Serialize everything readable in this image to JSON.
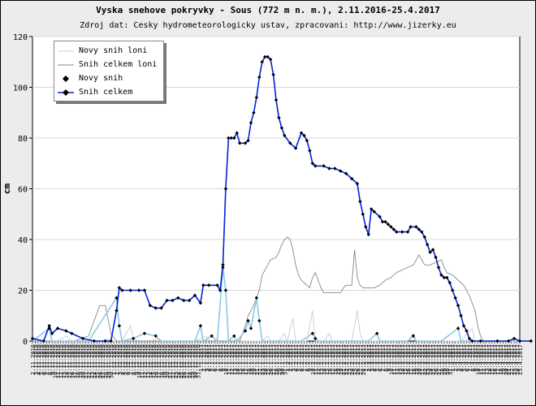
{
  "chart_data": {
    "type": "line",
    "title": "Vyska snehove pokryvky - Sous (772 m n. m.), 2.11.2016-25.4.2017",
    "subtitle": "Zdroj dat: Cesky hydrometeorologicky ustav, zpracovani: http://www.jizerky.eu",
    "ylabel": "cm",
    "xlabel": "",
    "ylim": [
      0,
      120
    ],
    "yticks": [
      0,
      20,
      40,
      60,
      80,
      100,
      120
    ],
    "grid": "horizontal",
    "legend_position": "top-left",
    "x_start": "2.11.2016",
    "x_end": "25.4.2017",
    "series": [
      {
        "name": "Novy snih loni",
        "color": "#cccccc",
        "points": [
          [
            0,
            0
          ],
          [
            5,
            0
          ],
          [
            9,
            0
          ],
          [
            12,
            2
          ],
          [
            14,
            0
          ],
          [
            18,
            0
          ],
          [
            22,
            0
          ],
          [
            25,
            0
          ],
          [
            27,
            1
          ],
          [
            28,
            0
          ],
          [
            32,
            0
          ],
          [
            35,
            6
          ],
          [
            36,
            1
          ],
          [
            38,
            0
          ],
          [
            42,
            0
          ],
          [
            45,
            1
          ],
          [
            46,
            0
          ],
          [
            55,
            0
          ],
          [
            58,
            0
          ],
          [
            62,
            2
          ],
          [
            63,
            0
          ],
          [
            70,
            0
          ],
          [
            74,
            0
          ],
          [
            78,
            0
          ],
          [
            82,
            0
          ],
          [
            84,
            2
          ],
          [
            85,
            0
          ],
          [
            88,
            0
          ],
          [
            90,
            3
          ],
          [
            91,
            0
          ],
          [
            93,
            9
          ],
          [
            94,
            0
          ],
          [
            96,
            0
          ],
          [
            98,
            0
          ],
          [
            100,
            12
          ],
          [
            101,
            0
          ],
          [
            104,
            0
          ],
          [
            106,
            3
          ],
          [
            107,
            0
          ],
          [
            110,
            0
          ],
          [
            114,
            0
          ],
          [
            116,
            12
          ],
          [
            117,
            3
          ],
          [
            118,
            0
          ],
          [
            122,
            0
          ],
          [
            126,
            0
          ],
          [
            130,
            0
          ],
          [
            134,
            0
          ],
          [
            136,
            3
          ],
          [
            137,
            0
          ],
          [
            141,
            0
          ],
          [
            145,
            0
          ],
          [
            149,
            0
          ],
          [
            153,
            0
          ],
          [
            157,
            5
          ],
          [
            158,
            0
          ],
          [
            162,
            0
          ],
          [
            166,
            0
          ],
          [
            170,
            0
          ],
          [
            174,
            0
          ],
          [
            178,
            0
          ]
        ]
      },
      {
        "name": "Snih celkem loni",
        "color": "#888888",
        "points": [
          [
            0,
            0
          ],
          [
            8,
            0
          ],
          [
            15,
            0
          ],
          [
            20,
            2
          ],
          [
            24,
            14
          ],
          [
            26,
            14
          ],
          [
            28,
            3
          ],
          [
            30,
            0
          ],
          [
            34,
            0
          ],
          [
            38,
            0
          ],
          [
            42,
            0
          ],
          [
            46,
            0
          ],
          [
            50,
            0
          ],
          [
            54,
            0
          ],
          [
            58,
            0
          ],
          [
            62,
            0
          ],
          [
            66,
            0
          ],
          [
            68,
            0
          ],
          [
            70,
            0
          ],
          [
            72,
            0
          ],
          [
            74,
            0
          ],
          [
            76,
            6
          ],
          [
            77,
            10
          ],
          [
            79,
            14
          ],
          [
            81,
            20
          ],
          [
            82,
            26
          ],
          [
            84,
            30
          ],
          [
            85,
            32
          ],
          [
            87,
            33
          ],
          [
            88,
            35
          ],
          [
            89,
            38
          ],
          [
            90,
            40
          ],
          [
            91,
            41
          ],
          [
            92,
            40
          ],
          [
            93,
            36
          ],
          [
            94,
            30
          ],
          [
            95,
            26
          ],
          [
            96,
            24
          ],
          [
            98,
            22
          ],
          [
            99,
            21
          ],
          [
            100,
            25
          ],
          [
            101,
            27
          ],
          [
            102,
            24
          ],
          [
            103,
            21
          ],
          [
            104,
            19
          ],
          [
            106,
            19
          ],
          [
            108,
            19
          ],
          [
            110,
            19
          ],
          [
            111,
            21
          ],
          [
            112,
            22
          ],
          [
            114,
            22
          ],
          [
            115,
            36
          ],
          [
            116,
            25
          ],
          [
            117,
            22
          ],
          [
            118,
            21
          ],
          [
            120,
            21
          ],
          [
            122,
            21
          ],
          [
            124,
            22
          ],
          [
            126,
            24
          ],
          [
            128,
            25
          ],
          [
            130,
            27
          ],
          [
            132,
            28
          ],
          [
            134,
            29
          ],
          [
            136,
            30
          ],
          [
            138,
            34
          ],
          [
            139,
            32
          ],
          [
            140,
            30
          ],
          [
            142,
            30
          ],
          [
            144,
            31
          ],
          [
            146,
            32
          ],
          [
            147,
            29
          ],
          [
            148,
            27
          ],
          [
            150,
            26
          ],
          [
            152,
            24
          ],
          [
            154,
            22
          ],
          [
            156,
            18
          ],
          [
            158,
            12
          ],
          [
            159,
            6
          ],
          [
            160,
            2
          ],
          [
            161,
            0
          ],
          [
            166,
            0
          ],
          [
            172,
            0
          ],
          [
            178,
            0
          ]
        ]
      },
      {
        "name": "Novy snih",
        "color": "#88c8e8",
        "points": [
          [
            0,
            0
          ],
          [
            6,
            5
          ],
          [
            7,
            0
          ],
          [
            12,
            0
          ],
          [
            20,
            0
          ],
          [
            30,
            17
          ],
          [
            31,
            6
          ],
          [
            32,
            0
          ],
          [
            36,
            1
          ],
          [
            40,
            3
          ],
          [
            44,
            2
          ],
          [
            46,
            0
          ],
          [
            50,
            0
          ],
          [
            55,
            0
          ],
          [
            58,
            0
          ],
          [
            60,
            6
          ],
          [
            61,
            0
          ],
          [
            64,
            2
          ],
          [
            66,
            0
          ],
          [
            68,
            29
          ],
          [
            69,
            20
          ],
          [
            70,
            0
          ],
          [
            72,
            2
          ],
          [
            73,
            0
          ],
          [
            76,
            4
          ],
          [
            77,
            8
          ],
          [
            78,
            5
          ],
          [
            80,
            17
          ],
          [
            81,
            8
          ],
          [
            82,
            0
          ],
          [
            86,
            0
          ],
          [
            92,
            0
          ],
          [
            96,
            0
          ],
          [
            100,
            3
          ],
          [
            101,
            1
          ],
          [
            102,
            0
          ],
          [
            110,
            0
          ],
          [
            120,
            0
          ],
          [
            123,
            3
          ],
          [
            124,
            0
          ],
          [
            128,
            0
          ],
          [
            134,
            0
          ],
          [
            136,
            2
          ],
          [
            137,
            0
          ],
          [
            142,
            0
          ],
          [
            146,
            0
          ],
          [
            152,
            5
          ],
          [
            153,
            0
          ],
          [
            158,
            0
          ],
          [
            166,
            0
          ],
          [
            172,
            0
          ],
          [
            178,
            0
          ]
        ]
      },
      {
        "name": "Snih celkem",
        "color": "#0022dd",
        "points": [
          [
            0,
            1
          ],
          [
            4,
            0
          ],
          [
            6,
            6
          ],
          [
            7,
            3
          ],
          [
            9,
            5
          ],
          [
            12,
            4
          ],
          [
            14,
            3
          ],
          [
            18,
            1
          ],
          [
            22,
            0
          ],
          [
            26,
            0
          ],
          [
            28,
            0
          ],
          [
            30,
            12
          ],
          [
            31,
            21
          ],
          [
            32,
            20
          ],
          [
            35,
            20
          ],
          [
            38,
            20
          ],
          [
            40,
            20
          ],
          [
            42,
            14
          ],
          [
            44,
            13
          ],
          [
            46,
            13
          ],
          [
            48,
            16
          ],
          [
            50,
            16
          ],
          [
            52,
            17
          ],
          [
            54,
            16
          ],
          [
            56,
            16
          ],
          [
            58,
            18
          ],
          [
            60,
            15
          ],
          [
            61,
            22
          ],
          [
            63,
            22
          ],
          [
            66,
            22
          ],
          [
            67,
            20
          ],
          [
            68,
            30
          ],
          [
            69,
            60
          ],
          [
            70,
            80
          ],
          [
            71,
            80
          ],
          [
            72,
            80
          ],
          [
            73,
            82
          ],
          [
            74,
            78
          ],
          [
            76,
            78
          ],
          [
            77,
            79
          ],
          [
            78,
            86
          ],
          [
            79,
            90
          ],
          [
            80,
            96
          ],
          [
            81,
            104
          ],
          [
            82,
            110
          ],
          [
            83,
            112
          ],
          [
            84,
            112
          ],
          [
            85,
            111
          ],
          [
            86,
            105
          ],
          [
            87,
            95
          ],
          [
            88,
            88
          ],
          [
            89,
            84
          ],
          [
            90,
            81
          ],
          [
            92,
            78
          ],
          [
            94,
            76
          ],
          [
            96,
            82
          ],
          [
            97,
            81
          ],
          [
            98,
            79
          ],
          [
            99,
            75
          ],
          [
            100,
            70
          ],
          [
            101,
            69
          ],
          [
            104,
            69
          ],
          [
            106,
            68
          ],
          [
            108,
            68
          ],
          [
            110,
            67
          ],
          [
            112,
            66
          ],
          [
            114,
            64
          ],
          [
            116,
            62
          ],
          [
            117,
            55
          ],
          [
            118,
            50
          ],
          [
            119,
            45
          ],
          [
            120,
            42
          ],
          [
            121,
            52
          ],
          [
            122,
            51
          ],
          [
            124,
            49
          ],
          [
            125,
            47
          ],
          [
            126,
            47
          ],
          [
            127,
            46
          ],
          [
            128,
            45
          ],
          [
            129,
            44
          ],
          [
            130,
            43
          ],
          [
            132,
            43
          ],
          [
            134,
            43
          ],
          [
            135,
            45
          ],
          [
            137,
            45
          ],
          [
            138,
            44
          ],
          [
            139,
            43
          ],
          [
            140,
            41
          ],
          [
            141,
            38
          ],
          [
            142,
            35
          ],
          [
            143,
            36
          ],
          [
            144,
            33
          ],
          [
            145,
            29
          ],
          [
            146,
            26
          ],
          [
            147,
            25
          ],
          [
            148,
            25
          ],
          [
            149,
            23
          ],
          [
            150,
            20
          ],
          [
            151,
            17
          ],
          [
            152,
            14
          ],
          [
            153,
            10
          ],
          [
            154,
            6
          ],
          [
            155,
            4
          ],
          [
            156,
            1
          ],
          [
            157,
            0
          ],
          [
            160,
            0
          ],
          [
            166,
            0
          ],
          [
            170,
            0
          ],
          [
            172,
            1
          ],
          [
            174,
            0
          ],
          [
            178,
            0
          ]
        ]
      }
    ]
  },
  "legend": [
    {
      "label": "Novy snih loni",
      "color": "#cccccc",
      "marker": "none"
    },
    {
      "label": "Snih celkem loni",
      "color": "#888888",
      "marker": "none"
    },
    {
      "label": "Novy snih",
      "color": "#000000",
      "marker": "diamond"
    },
    {
      "label": "Snih celkem",
      "color": "#0022dd",
      "marker": "diamond"
    }
  ]
}
